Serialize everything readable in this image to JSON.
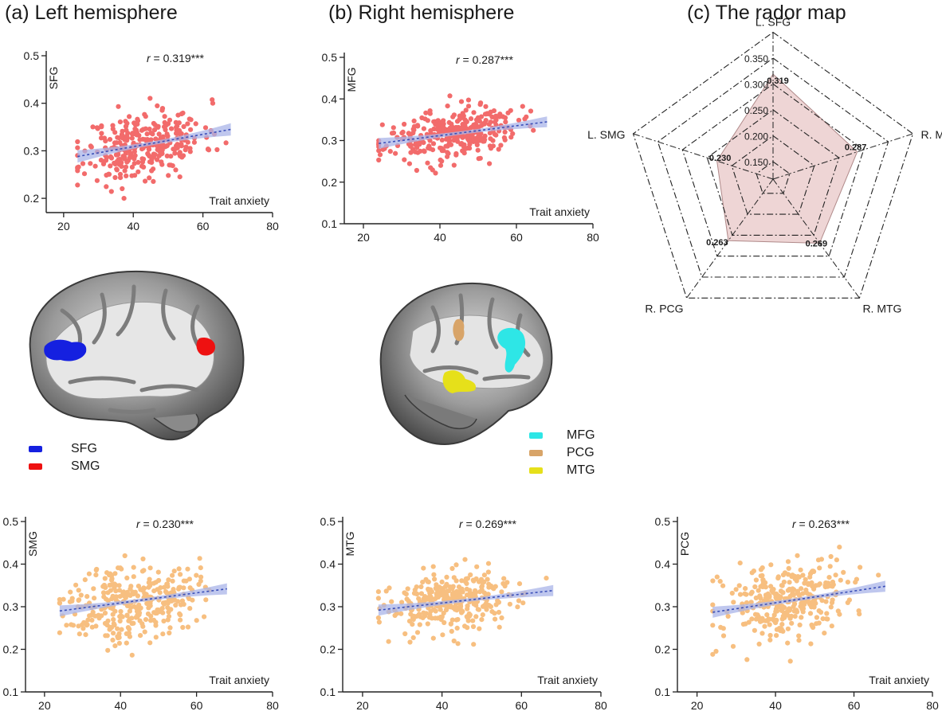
{
  "titles": {
    "a": "(a) Left hemisphere",
    "b": "(b) Right hemisphere",
    "c": "(c) The rador map"
  },
  "colors": {
    "point_red": "#f26b6b",
    "point_orange": "#f7bf80",
    "fit_line": "#3a4fb8",
    "ci_band": "#aab4e8",
    "radar_fill": "#eed5d5",
    "SFG": "#1520e0",
    "SMG": "#ee1111",
    "MFG": "#2ee6e6",
    "PCG": "#d8a468",
    "MTG": "#e6e01a"
  },
  "legends": {
    "left": [
      {
        "label": "SFG",
        "color": "#1520e0"
      },
      {
        "label": "SMG",
        "color": "#ee1111"
      }
    ],
    "right": [
      {
        "label": "MFG",
        "color": "#2ee6e6"
      },
      {
        "label": "PCG",
        "color": "#d8a468"
      },
      {
        "label": "MTG",
        "color": "#e6e01a"
      }
    ]
  },
  "chart_data": [
    {
      "id": "sfg",
      "type": "scatter",
      "ylabel": "SFG",
      "xlabel": "Trait anxiety",
      "annotation": {
        "italic": "r",
        "rest": " = 0.319***"
      },
      "xlim": [
        15,
        80
      ],
      "ylim": [
        0.17,
        0.5
      ],
      "xticks": [
        20,
        40,
        60,
        80
      ],
      "yticks": [
        0.2,
        0.3,
        0.4,
        0.5
      ],
      "xtick_labels": [
        "20",
        "40",
        "60",
        "80"
      ],
      "ytick_labels": [
        "0.2",
        "0.3",
        "0.4",
        "0.5"
      ],
      "fit": {
        "x": [
          24,
          68
        ],
        "y": [
          0.288,
          0.345
        ]
      },
      "point_color": "#f26b6b",
      "n_points": 320,
      "x_mean": 43,
      "x_sd": 8.5,
      "x_min": 24,
      "x_max": 68,
      "resid_sd": 0.035,
      "seed": 11
    },
    {
      "id": "mfg",
      "type": "scatter",
      "ylabel": "MFG",
      "xlabel": "Trait anxiety",
      "annotation": {
        "italic": "r",
        "rest": " = 0.287***"
      },
      "xlim": [
        15,
        80
      ],
      "ylim": [
        0.1,
        0.5
      ],
      "xticks": [
        20,
        40,
        60,
        80
      ],
      "yticks": [
        0.1,
        0.2,
        0.3,
        0.4,
        0.5
      ],
      "xtick_labels": [
        "20",
        "40",
        "60",
        "80"
      ],
      "ytick_labels": [
        "0.1",
        "0.2",
        "0.3",
        "0.4",
        "0.5"
      ],
      "fit": {
        "x": [
          24,
          68
        ],
        "y": [
          0.293,
          0.345
        ]
      },
      "point_color": "#f26b6b",
      "n_points": 320,
      "x_mean": 43,
      "x_sd": 8.5,
      "x_min": 24,
      "x_max": 68,
      "resid_sd": 0.03,
      "seed": 23
    },
    {
      "id": "smg",
      "type": "scatter",
      "ylabel": "SMG",
      "xlabel": "Trait anxiety",
      "annotation": {
        "italic": "r",
        "rest": " = 0.230***"
      },
      "xlim": [
        15,
        80
      ],
      "ylim": [
        0.1,
        0.5
      ],
      "xticks": [
        20,
        40,
        60,
        80
      ],
      "yticks": [
        0.1,
        0.2,
        0.3,
        0.4,
        0.5
      ],
      "xtick_labels": [
        "20",
        "40",
        "60",
        "80"
      ],
      "ytick_labels": [
        "0.1",
        "0.2",
        "0.3",
        "0.4",
        "0.5"
      ],
      "fit": {
        "x": [
          24,
          68
        ],
        "y": [
          0.29,
          0.342
        ]
      },
      "point_color": "#f7bf80",
      "n_points": 320,
      "x_mean": 43,
      "x_sd": 8.5,
      "x_min": 24,
      "x_max": 68,
      "resid_sd": 0.045,
      "seed": 37
    },
    {
      "id": "mtg",
      "type": "scatter",
      "ylabel": "MTG",
      "xlabel": "Trait anxiety",
      "annotation": {
        "italic": "r",
        "rest": " = 0.269***"
      },
      "xlim": [
        15,
        80
      ],
      "ylim": [
        0.1,
        0.5
      ],
      "xticks": [
        20,
        40,
        60,
        80
      ],
      "yticks": [
        0.1,
        0.2,
        0.3,
        0.4,
        0.5
      ],
      "xtick_labels": [
        "20",
        "40",
        "60",
        "80"
      ],
      "ytick_labels": [
        "0.1",
        "0.2",
        "0.3",
        "0.4",
        "0.5"
      ],
      "fit": {
        "x": [
          24,
          68
        ],
        "y": [
          0.292,
          0.338
        ]
      },
      "point_color": "#f7bf80",
      "n_points": 320,
      "x_mean": 43,
      "x_sd": 8.5,
      "x_min": 24,
      "x_max": 68,
      "resid_sd": 0.035,
      "seed": 53
    },
    {
      "id": "pcg",
      "type": "scatter",
      "ylabel": "PCG",
      "xlabel": "Trait anxiety",
      "annotation": {
        "italic": "r",
        "rest": " = 0.263***"
      },
      "xlim": [
        15,
        80
      ],
      "ylim": [
        0.1,
        0.5
      ],
      "xticks": [
        20,
        40,
        60,
        80
      ],
      "yticks": [
        0.1,
        0.2,
        0.3,
        0.4,
        0.5
      ],
      "xtick_labels": [
        "20",
        "40",
        "60",
        "80"
      ],
      "ytick_labels": [
        "0.1",
        "0.2",
        "0.3",
        "0.4",
        "0.5"
      ],
      "fit": {
        "x": [
          24,
          68
        ],
        "y": [
          0.287,
          0.348
        ]
      },
      "point_color": "#f7bf80",
      "n_points": 320,
      "x_mean": 43,
      "x_sd": 8.5,
      "x_min": 24,
      "x_max": 68,
      "resid_sd": 0.045,
      "seed": 71
    },
    {
      "id": "radar",
      "type": "radar",
      "axes": [
        "L. SFG",
        "R. MFG",
        "R. MTG",
        "R. PCG",
        "L. SMG"
      ],
      "values": [
        0.319,
        0.287,
        0.269,
        0.263,
        0.23
      ],
      "value_labels": [
        "0.319",
        "0.287",
        "0.269",
        "0.263",
        "0.230"
      ],
      "range": [
        0.15,
        0.35
      ],
      "rings": [
        0.15,
        0.2,
        0.25,
        0.3,
        0.35
      ],
      "ring_labels": [
        "0.150",
        "0.200",
        "0.250",
        "0.300",
        "0.350"
      ]
    }
  ]
}
